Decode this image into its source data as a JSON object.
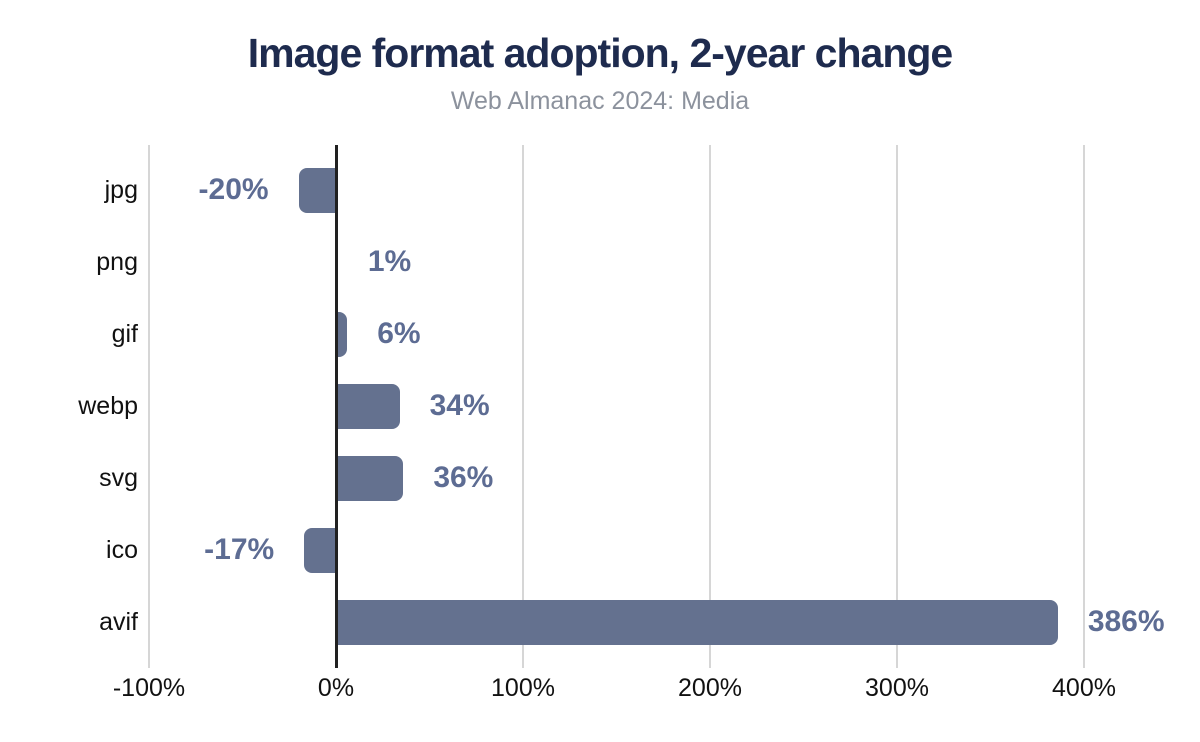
{
  "page": {
    "background": "#ffffff"
  },
  "chart": {
    "title": "Image format adoption, 2-year change",
    "subtitle": "Web Almanac 2024: Media",
    "colors": {
      "bar": "#64718F",
      "value_label": "#5D6C93",
      "title": "#1E2B4E",
      "subtitle": "#8C929D",
      "grid": "#D6D6D6",
      "axis": "#212121",
      "text": "#111111"
    }
  },
  "chart_data": {
    "type": "bar",
    "orientation": "horizontal",
    "title": "Image format adoption, 2-year change",
    "subtitle": "Web Almanac 2024: Media",
    "categories": [
      "jpg",
      "png",
      "gif",
      "webp",
      "svg",
      "ico",
      "avif"
    ],
    "values": [
      -20,
      1,
      6,
      34,
      36,
      -17,
      386
    ],
    "value_labels": [
      "-20%",
      "1%",
      "6%",
      "34%",
      "36%",
      "-17%",
      "386%"
    ],
    "xlabel": "",
    "ylabel": "",
    "xlim": [
      -100,
      440
    ],
    "xticks": [
      -100,
      0,
      100,
      200,
      300,
      400
    ],
    "xtick_labels": [
      "-100%",
      "0%",
      "100%",
      "200%",
      "300%",
      "400%"
    ],
    "grid": true,
    "legend": false,
    "data_labels": true
  }
}
